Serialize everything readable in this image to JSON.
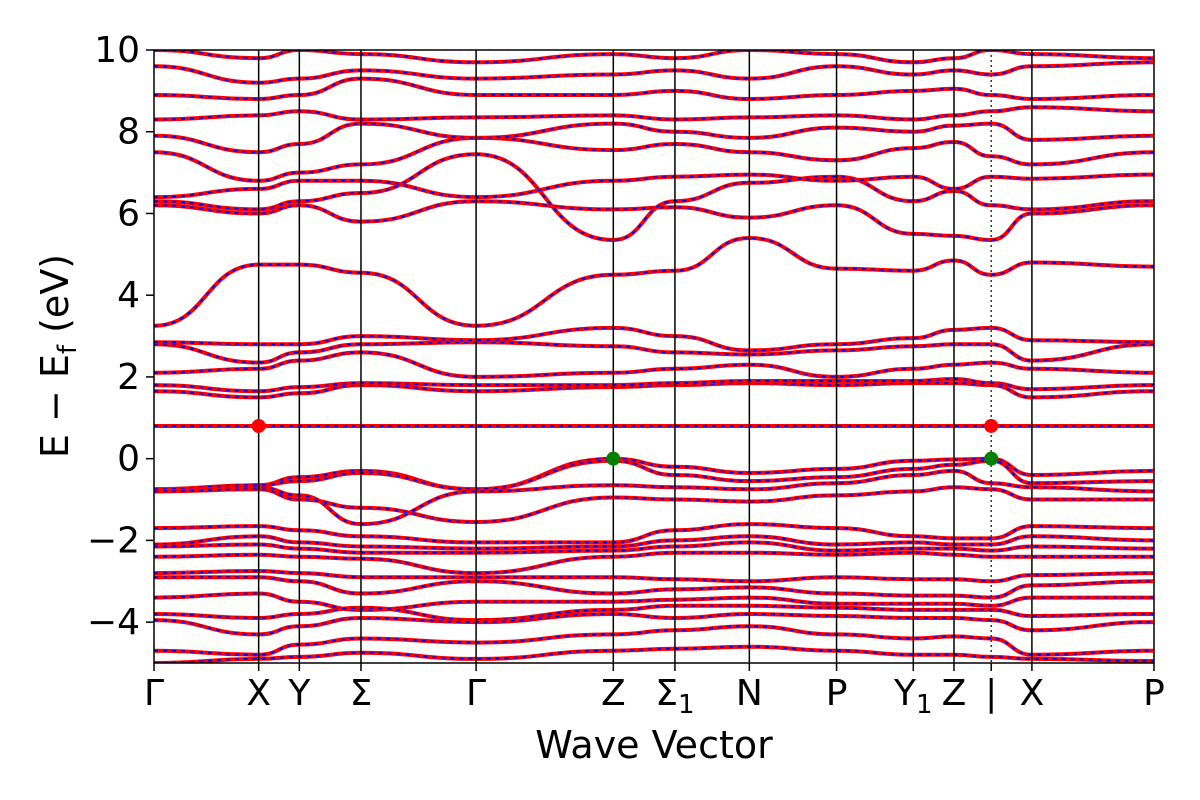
{
  "chart_data": {
    "type": "line",
    "title": "",
    "xlabel": "Wave Vector",
    "ylabel_main": "E − E",
    "ylabel_sub": "f",
    "ylabel_unit": " (eV)",
    "ylim": [
      -5,
      10
    ],
    "yticks": [
      {
        "value": 10,
        "label": "10"
      },
      {
        "value": 8,
        "label": "8"
      },
      {
        "value": 6,
        "label": "6"
      },
      {
        "value": 4,
        "label": "4"
      },
      {
        "value": 2,
        "label": "2"
      },
      {
        "value": 0,
        "label": "0"
      },
      {
        "value": -2,
        "label": "−2"
      },
      {
        "value": -4,
        "label": "−4"
      }
    ],
    "xlim": [
      0,
      8.6
    ],
    "xticks": [
      {
        "value": 0,
        "label": "Γ"
      },
      {
        "value": 0.9,
        "label": "X"
      },
      {
        "value": 1.25,
        "label": "Y"
      },
      {
        "value": 1.78,
        "label": "Σ"
      },
      {
        "value": 2.77,
        "label": "Γ"
      },
      {
        "value": 3.95,
        "label": "Z"
      },
      {
        "value": 4.48,
        "label": "Σ",
        "sub": "1"
      },
      {
        "value": 5.12,
        "label": "N"
      },
      {
        "value": 5.87,
        "label": "P"
      },
      {
        "value": 6.53,
        "label": "Y",
        "sub": "1"
      },
      {
        "value": 6.88,
        "label": "Z"
      },
      {
        "value": 7.2,
        "label": "|",
        "dashed": true
      },
      {
        "value": 7.55,
        "label": "X"
      },
      {
        "value": 8.6,
        "label": "P"
      }
    ],
    "series": [
      {
        "color": "#ff0000",
        "style": "solid"
      },
      {
        "color": "#0000ff",
        "style": "dashed"
      }
    ],
    "bands": [
      {
        "x": [
          0,
          0.9,
          1.25,
          1.78,
          2.77,
          3.95,
          4.48,
          5.12,
          5.87,
          6.53,
          6.88,
          7.2,
          7.55,
          8.6
        ],
        "y": [
          0.8,
          0.8,
          0.8,
          0.8,
          0.8,
          0.8,
          0.8,
          0.8,
          0.8,
          0.8,
          0.8,
          0.8,
          0.8,
          0.8
        ]
      },
      {
        "x": [
          0,
          0.9,
          1.25,
          1.78,
          2.77,
          3.95,
          4.48,
          5.12,
          5.87,
          6.53,
          6.88,
          7.2,
          7.55,
          8.6
        ],
        "y": [
          -0.75,
          -0.65,
          -0.45,
          -0.3,
          -0.75,
          0.0,
          -0.2,
          -0.35,
          -0.25,
          -0.05,
          -0.02,
          0.0,
          -0.4,
          -0.3
        ]
      },
      {
        "x": [
          0,
          0.9,
          1.25,
          1.78,
          2.77,
          3.95,
          4.48,
          5.12,
          5.87,
          6.53,
          6.88,
          7.2,
          7.55,
          8.6
        ],
        "y": [
          -0.75,
          -0.65,
          -0.55,
          -0.35,
          -0.75,
          -0.05,
          -0.4,
          -0.55,
          -0.45,
          -0.25,
          -0.15,
          -0.05,
          -0.6,
          -0.55
        ]
      },
      {
        "x": [
          0,
          0.9,
          1.25,
          1.78,
          2.77,
          3.95,
          4.48,
          5.12,
          5.87,
          6.53,
          6.88,
          7.2,
          7.55,
          8.6
        ],
        "y": [
          -0.8,
          -0.7,
          -0.9,
          -1.6,
          -0.8,
          -0.65,
          -0.7,
          -0.75,
          -0.6,
          -0.4,
          -0.3,
          -0.6,
          -0.7,
          -0.8
        ]
      },
      {
        "x": [
          0,
          0.9,
          1.25,
          1.78,
          2.77,
          3.95,
          4.48,
          5.12,
          5.87,
          6.53,
          6.88,
          7.2,
          7.55,
          8.6
        ],
        "y": [
          -0.8,
          -0.75,
          -1.0,
          -1.2,
          -1.55,
          -0.95,
          -1.0,
          -1.05,
          -0.9,
          -0.8,
          -0.7,
          -0.75,
          -1.0,
          -1.0
        ]
      },
      {
        "x": [
          0,
          0.9,
          1.25,
          1.78,
          2.77,
          3.95,
          4.48,
          5.12,
          5.87,
          6.53,
          6.88,
          7.2,
          7.55,
          8.6
        ],
        "y": [
          -1.7,
          -1.65,
          -1.75,
          -1.9,
          -2.05,
          -2.05,
          -1.75,
          -1.6,
          -1.7,
          -1.9,
          -1.95,
          -1.95,
          -1.65,
          -1.7
        ]
      },
      {
        "x": [
          0,
          0.9,
          1.25,
          1.78,
          2.77,
          3.95,
          4.48,
          5.12,
          5.87,
          6.53,
          6.88,
          7.2,
          7.55,
          8.6
        ],
        "y": [
          -2.1,
          -1.9,
          -2.05,
          -2.15,
          -2.2,
          -2.15,
          -2.0,
          -1.9,
          -2.1,
          -2.05,
          -2.1,
          -2.1,
          -1.9,
          -2.0
        ]
      },
      {
        "x": [
          0,
          0.9,
          1.25,
          1.78,
          2.77,
          3.95,
          4.48,
          5.12,
          5.87,
          6.53,
          6.88,
          7.2,
          7.55,
          8.6
        ],
        "y": [
          -2.15,
          -2.1,
          -2.2,
          -2.3,
          -2.3,
          -2.25,
          -2.15,
          -2.05,
          -2.25,
          -2.2,
          -2.2,
          -2.25,
          -2.15,
          -2.2
        ]
      },
      {
        "x": [
          0,
          0.9,
          1.25,
          1.78,
          2.77,
          3.95,
          4.48,
          5.12,
          5.87,
          6.53,
          6.88,
          7.2,
          7.55,
          8.6
        ],
        "y": [
          -2.4,
          -2.35,
          -2.4,
          -2.45,
          -2.8,
          -2.4,
          -2.3,
          -2.3,
          -2.35,
          -2.3,
          -2.35,
          -2.4,
          -2.4,
          -2.4
        ]
      },
      {
        "x": [
          0,
          0.9,
          1.25,
          1.78,
          2.77,
          3.95,
          4.48,
          5.12,
          5.87,
          6.53,
          6.88,
          7.2,
          7.55,
          8.6
        ],
        "y": [
          -2.8,
          -2.75,
          -2.8,
          -2.9,
          -2.9,
          -2.9,
          -2.95,
          -3.0,
          -2.9,
          -2.95,
          -2.95,
          -3.0,
          -2.85,
          -2.8
        ]
      },
      {
        "x": [
          0,
          0.9,
          1.25,
          1.78,
          2.77,
          3.95,
          4.48,
          5.12,
          5.87,
          6.53,
          6.88,
          7.2,
          7.55,
          8.6
        ],
        "y": [
          -2.9,
          -2.9,
          -3.0,
          -3.3,
          -3.0,
          -3.3,
          -3.2,
          -3.15,
          -3.3,
          -3.35,
          -3.35,
          -3.4,
          -3.1,
          -3.0
        ]
      },
      {
        "x": [
          0,
          0.9,
          1.25,
          1.78,
          2.77,
          3.95,
          4.48,
          5.12,
          5.87,
          6.53,
          6.88,
          7.2,
          7.55,
          8.6
        ],
        "y": [
          -3.4,
          -3.3,
          -3.5,
          -3.7,
          -3.5,
          -3.5,
          -3.45,
          -3.4,
          -3.55,
          -3.55,
          -3.55,
          -3.6,
          -3.4,
          -3.4
        ]
      },
      {
        "x": [
          0,
          0.9,
          1.25,
          1.78,
          2.77,
          3.95,
          4.48,
          5.12,
          5.87,
          6.53,
          6.88,
          7.2,
          7.55,
          8.6
        ],
        "y": [
          -3.8,
          -3.9,
          -3.8,
          -3.65,
          -3.95,
          -3.7,
          -3.6,
          -3.6,
          -3.65,
          -3.7,
          -3.7,
          -3.7,
          -3.85,
          -3.8
        ]
      },
      {
        "x": [
          0,
          0.9,
          1.25,
          1.78,
          2.77,
          3.95,
          4.48,
          5.12,
          5.87,
          6.53,
          6.88,
          7.2,
          7.55,
          8.6
        ],
        "y": [
          -3.95,
          -4.3,
          -4.1,
          -3.9,
          -4.0,
          -3.8,
          -3.9,
          -3.8,
          -3.85,
          -3.9,
          -3.9,
          -3.95,
          -4.2,
          -4.0
        ]
      },
      {
        "x": [
          0,
          0.9,
          1.25,
          1.78,
          2.77,
          3.95,
          4.48,
          5.12,
          5.87,
          6.53,
          6.88,
          7.2,
          7.55,
          8.6
        ],
        "y": [
          -4.7,
          -4.8,
          -4.55,
          -4.4,
          -4.5,
          -4.3,
          -4.2,
          -4.1,
          -4.3,
          -4.4,
          -4.35,
          -4.4,
          -4.8,
          -4.7
        ]
      },
      {
        "x": [
          0,
          0.9,
          1.25,
          1.78,
          2.77,
          3.95,
          4.48,
          5.12,
          5.87,
          6.53,
          6.88,
          7.2,
          7.55,
          8.6
        ],
        "y": [
          -5.0,
          -4.9,
          -4.85,
          -4.75,
          -4.9,
          -4.7,
          -4.65,
          -4.6,
          -4.7,
          -4.8,
          -4.8,
          -4.85,
          -4.9,
          -4.95
        ]
      },
      {
        "x": [
          0,
          0.9,
          1.25,
          1.78,
          2.77,
          3.95,
          4.48,
          5.12,
          5.87,
          6.53,
          6.88,
          7.2,
          7.55,
          8.6
        ],
        "y": [
          1.65,
          1.5,
          1.6,
          1.8,
          1.65,
          1.75,
          1.8,
          1.85,
          1.8,
          1.85,
          1.85,
          1.8,
          1.5,
          1.65
        ]
      },
      {
        "x": [
          0,
          0.9,
          1.25,
          1.78,
          2.77,
          3.95,
          4.48,
          5.12,
          5.87,
          6.53,
          6.88,
          7.2,
          7.55,
          8.6
        ],
        "y": [
          1.8,
          1.65,
          1.75,
          1.85,
          1.8,
          1.8,
          1.85,
          1.9,
          1.9,
          1.9,
          1.95,
          1.85,
          1.7,
          1.8
        ]
      },
      {
        "x": [
          0,
          0.9,
          1.25,
          1.78,
          2.77,
          3.95,
          4.48,
          5.12,
          5.87,
          6.53,
          6.88,
          7.2,
          7.55,
          8.6
        ],
        "y": [
          2.1,
          2.2,
          2.4,
          2.6,
          2.0,
          2.1,
          2.2,
          2.3,
          2.0,
          2.2,
          2.3,
          2.35,
          2.2,
          2.1
        ]
      },
      {
        "x": [
          0,
          0.9,
          1.25,
          1.78,
          2.77,
          3.95,
          4.48,
          5.12,
          5.87,
          6.53,
          6.88,
          7.2,
          7.55,
          8.6
        ],
        "y": [
          2.8,
          2.35,
          2.6,
          2.8,
          2.85,
          2.75,
          2.6,
          2.55,
          2.65,
          2.75,
          2.8,
          2.8,
          2.4,
          2.8
        ]
      },
      {
        "x": [
          0,
          0.9,
          1.25,
          1.78,
          2.77,
          3.95,
          4.48,
          5.12,
          5.87,
          6.53,
          6.88,
          7.2,
          7.55,
          8.6
        ],
        "y": [
          2.85,
          2.8,
          2.8,
          3.0,
          2.9,
          3.2,
          3.0,
          2.65,
          2.8,
          2.95,
          3.15,
          3.2,
          2.9,
          2.85
        ]
      },
      {
        "x": [
          0,
          0.9,
          1.25,
          1.78,
          2.77,
          3.95,
          4.48,
          5.12,
          5.87,
          6.53,
          6.88,
          7.2,
          7.55,
          8.6
        ],
        "y": [
          3.25,
          4.75,
          4.75,
          4.55,
          3.25,
          4.5,
          4.6,
          5.4,
          4.65,
          4.6,
          4.85,
          4.5,
          4.8,
          4.7
        ]
      },
      {
        "x": [
          0,
          0.9,
          1.25,
          1.78,
          2.77,
          3.95,
          4.48,
          5.12,
          5.87,
          6.53,
          6.88,
          7.2,
          7.55,
          8.6
        ],
        "y": [
          6.2,
          6.0,
          6.2,
          5.8,
          6.3,
          6.1,
          6.15,
          5.9,
          6.2,
          5.5,
          5.45,
          5.35,
          6.0,
          6.2
        ]
      },
      {
        "x": [
          0,
          0.9,
          1.25,
          1.78,
          2.77,
          3.95,
          4.48,
          5.12,
          5.87,
          6.53,
          6.88,
          7.2,
          7.55,
          8.6
        ],
        "y": [
          6.3,
          6.1,
          6.3,
          6.5,
          7.45,
          5.35,
          6.3,
          6.75,
          6.9,
          6.3,
          6.55,
          6.2,
          6.1,
          6.3
        ]
      },
      {
        "x": [
          0,
          0.9,
          1.25,
          1.78,
          2.77,
          3.95,
          4.48,
          5.12,
          5.87,
          6.53,
          6.88,
          7.2,
          7.55,
          8.6
        ],
        "y": [
          6.4,
          6.6,
          6.8,
          6.8,
          6.4,
          6.8,
          6.9,
          6.95,
          6.8,
          6.9,
          6.6,
          6.9,
          6.85,
          6.95
        ]
      },
      {
        "x": [
          0,
          0.9,
          1.25,
          1.78,
          2.77,
          3.95,
          4.48,
          5.12,
          5.87,
          6.53,
          6.88,
          7.2,
          7.55,
          8.6
        ],
        "y": [
          7.5,
          6.8,
          7.0,
          7.2,
          7.85,
          7.55,
          7.7,
          7.5,
          7.3,
          7.6,
          7.75,
          7.4,
          7.2,
          7.5
        ]
      },
      {
        "x": [
          0,
          0.9,
          1.25,
          1.78,
          2.77,
          3.95,
          4.48,
          5.12,
          5.87,
          6.53,
          6.88,
          7.2,
          7.55,
          8.6
        ],
        "y": [
          7.9,
          7.5,
          7.7,
          8.2,
          7.85,
          8.2,
          8.0,
          7.85,
          8.1,
          8.0,
          8.15,
          8.2,
          7.8,
          7.9
        ]
      },
      {
        "x": [
          0,
          0.9,
          1.25,
          1.78,
          2.77,
          3.95,
          4.48,
          5.12,
          5.87,
          6.53,
          6.88,
          7.2,
          7.55,
          8.6
        ],
        "y": [
          8.3,
          8.4,
          8.5,
          8.3,
          8.35,
          8.4,
          8.3,
          8.35,
          8.4,
          8.3,
          8.4,
          8.5,
          8.6,
          8.5
        ]
      },
      {
        "x": [
          0,
          0.9,
          1.25,
          1.78,
          2.77,
          3.95,
          4.48,
          5.12,
          5.87,
          6.53,
          6.88,
          7.2,
          7.55,
          8.6
        ],
        "y": [
          8.9,
          8.8,
          8.9,
          9.3,
          8.9,
          8.9,
          9.0,
          8.8,
          8.9,
          9.0,
          9.05,
          8.9,
          8.8,
          8.9
        ]
      },
      {
        "x": [
          0,
          0.9,
          1.25,
          1.78,
          2.77,
          3.95,
          4.48,
          5.12,
          5.87,
          6.53,
          6.88,
          7.2,
          7.55,
          8.6
        ],
        "y": [
          9.6,
          9.2,
          9.3,
          9.5,
          9.3,
          9.4,
          9.5,
          9.3,
          9.6,
          9.4,
          9.5,
          9.4,
          9.6,
          9.7
        ]
      },
      {
        "x": [
          0,
          0.9,
          1.25,
          1.78,
          2.77,
          3.95,
          4.48,
          5.12,
          5.87,
          6.53,
          6.88,
          7.2,
          7.55,
          8.6
        ],
        "y": [
          10.0,
          9.8,
          10.0,
          9.9,
          9.7,
          9.9,
          9.8,
          10.0,
          9.9,
          9.7,
          9.8,
          10.0,
          9.9,
          9.8
        ]
      }
    ],
    "markers": [
      {
        "x": 0.9,
        "y": 0.8,
        "color": "#ff0000"
      },
      {
        "x": 7.2,
        "y": 0.8,
        "color": "#ff0000"
      },
      {
        "x": 3.95,
        "y": 0.0,
        "color": "#008000"
      },
      {
        "x": 7.2,
        "y": 0.0,
        "color": "#008000"
      }
    ]
  }
}
